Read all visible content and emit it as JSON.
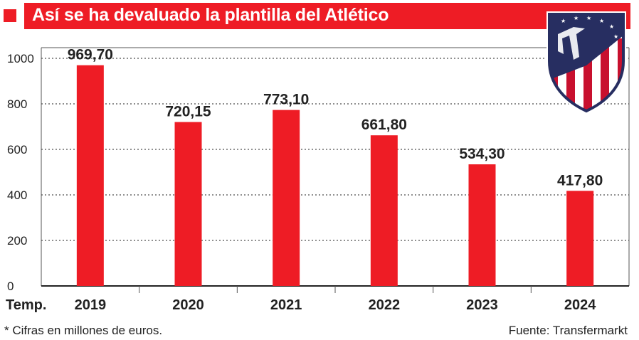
{
  "header": {
    "title": "Así se ha devaluado la plantilla del Atlético"
  },
  "chart_data": {
    "type": "bar",
    "title": "Así se ha devaluado la plantilla del Atlético",
    "xlabel": "Temp.",
    "ylabel": "",
    "categories": [
      "2019",
      "2020",
      "2021",
      "2022",
      "2023",
      "2024"
    ],
    "values": [
      969.7,
      720.15,
      773.1,
      661.8,
      534.3,
      417.8
    ],
    "value_labels": [
      "969,70",
      "720,15",
      "773,10",
      "661,80",
      "534,30",
      "417,80"
    ],
    "yticks": [
      0,
      200,
      400,
      600,
      800,
      1000
    ],
    "ylim": [
      0,
      1000
    ],
    "grid": true,
    "color": "#ee1c25"
  },
  "footnote": "* Cifras en millones de euros.",
  "source": "Fuente: Transfermarkt",
  "logo": {
    "name": "atletico-madrid-crest",
    "colors": [
      "#c8102e",
      "#272e61",
      "#ffffff"
    ]
  }
}
